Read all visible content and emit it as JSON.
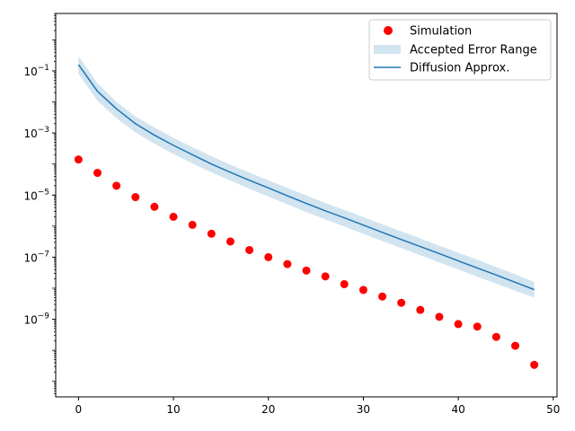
{
  "chart_data": {
    "type": "scatter",
    "title": "",
    "xlabel": "",
    "ylabel": "",
    "xlim": [
      -2.4,
      50.4
    ],
    "ylim_log10": [
      -11.5,
      0.85
    ],
    "yscale": "log",
    "grid": false,
    "legend_position": "top-right",
    "x_ticks": [
      0,
      10,
      20,
      30,
      40,
      50
    ],
    "x_tick_labels": [
      "0",
      "10",
      "20",
      "30",
      "40",
      "50"
    ],
    "y_ticks_log10": [
      -1,
      -3,
      -5,
      -7,
      -9
    ],
    "y_tick_labels": [
      {
        "base": "10",
        "exp": "−1"
      },
      {
        "base": "10",
        "exp": "−3"
      },
      {
        "base": "10",
        "exp": "−5"
      },
      {
        "base": "10",
        "exp": "−7"
      },
      {
        "base": "10",
        "exp": "−9"
      }
    ],
    "series": [
      {
        "name": "Simulation",
        "kind": "scatter",
        "color": "#ff0000",
        "x": [
          0,
          2,
          4,
          6,
          8,
          10,
          12,
          14,
          16,
          18,
          20,
          22,
          24,
          26,
          28,
          30,
          32,
          34,
          36,
          38,
          40,
          42,
          44,
          46,
          48
        ],
        "y": [
          0.00014,
          5.2e-05,
          2e-05,
          8.6e-06,
          4.2e-06,
          2e-06,
          1.1e-06,
          5.7e-07,
          3.2e-07,
          1.7e-07,
          1e-07,
          6e-08,
          3.7e-08,
          2.4e-08,
          1.35e-08,
          8.8e-09,
          5.4e-09,
          3.4e-09,
          2e-09,
          1.2e-09,
          7e-10,
          5.8e-10,
          2.7e-10,
          1.4e-10,
          3.4e-11
        ]
      },
      {
        "name": "Accepted Error Range",
        "kind": "band",
        "color": "#1f77b4",
        "x": [
          0,
          2,
          4,
          6,
          8,
          10,
          12,
          14,
          16,
          18,
          20,
          22,
          24,
          26,
          28,
          30,
          32,
          34,
          36,
          38,
          40,
          42,
          44,
          46,
          48
        ],
        "lower": [
          0.08,
          0.011,
          0.003,
          0.00105,
          0.00045,
          0.00021,
          0.000105,
          5.4e-05,
          2.9e-05,
          1.6e-05,
          8.9e-06,
          5e-06,
          2.85e-06,
          1.65e-06,
          9.7e-07,
          5.6e-07,
          3.3e-07,
          1.95e-07,
          1.15e-07,
          6.8e-08,
          4e-08,
          2.35e-08,
          1.4e-08,
          8.3e-09,
          5e-09
        ],
        "upper": [
          0.3,
          0.04,
          0.01,
          0.0034,
          0.0015,
          0.0007,
          0.00035,
          0.00018,
          9.5e-05,
          5.3e-05,
          3e-05,
          1.7e-05,
          9.7e-06,
          5.6e-06,
          3.3e-06,
          1.95e-06,
          1.15e-06,
          6.8e-07,
          4e-07,
          2.35e-07,
          1.4e-07,
          8.2e-08,
          4.8e-08,
          2.8e-08,
          1.6e-08
        ]
      },
      {
        "name": "Diffusion Approx.",
        "kind": "line",
        "color": "#1f77b4",
        "x": [
          0,
          2,
          4,
          6,
          8,
          10,
          12,
          14,
          16,
          18,
          20,
          22,
          24,
          26,
          28,
          30,
          32,
          34,
          36,
          38,
          40,
          42,
          44,
          46,
          48
        ],
        "y": [
          0.16,
          0.022,
          0.006,
          0.002,
          0.00085,
          0.0004,
          0.0002,
          0.0001,
          5.4e-05,
          3e-05,
          1.7e-05,
          9.5e-06,
          5.4e-06,
          3.1e-06,
          1.85e-06,
          1.08e-06,
          6.3e-07,
          3.7e-07,
          2.2e-07,
          1.3e-07,
          7.6e-08,
          4.5e-08,
          2.65e-08,
          1.55e-08,
          9e-09
        ]
      }
    ]
  }
}
